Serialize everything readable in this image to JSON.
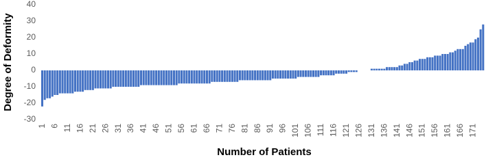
{
  "chart_data": {
    "type": "bar",
    "x_label": "Number of Patients",
    "y_label": "Degree of Deformity",
    "color": "#4472c4",
    "ylim": [
      -30,
      40
    ],
    "yticks": [
      -30,
      -20,
      -10,
      0,
      10,
      20,
      30,
      40
    ],
    "grid": false,
    "categories": [
      1,
      null,
      null,
      null,
      null,
      6,
      null,
      null,
      null,
      null,
      11,
      null,
      null,
      null,
      null,
      16,
      null,
      null,
      null,
      null,
      21,
      null,
      null,
      null,
      null,
      26,
      null,
      null,
      null,
      null,
      31,
      null,
      null,
      null,
      null,
      36,
      null,
      null,
      null,
      null,
      41,
      null,
      null,
      null,
      null,
      46,
      null,
      null,
      null,
      null,
      51,
      null,
      null,
      null,
      null,
      56,
      null,
      null,
      null,
      null,
      61,
      null,
      null,
      null,
      null,
      66,
      null,
      null,
      null,
      null,
      71,
      null,
      null,
      null,
      null,
      76,
      null,
      null,
      null,
      null,
      81,
      null,
      null,
      null,
      null,
      86,
      null,
      null,
      null,
      null,
      91,
      null,
      null,
      null,
      null,
      96,
      null,
      null,
      null,
      null,
      101,
      null,
      null,
      null,
      null,
      106,
      null,
      null,
      null,
      null,
      111,
      null,
      null,
      null,
      null,
      116,
      null,
      null,
      null,
      null,
      121,
      null,
      null,
      null,
      null,
      126,
      null,
      null,
      null,
      null,
      131,
      null,
      null,
      null,
      null,
      136,
      null,
      null,
      null,
      null,
      141,
      null,
      null,
      null,
      null,
      146,
      null,
      null,
      null,
      null,
      151,
      null,
      null,
      null,
      null,
      156,
      null,
      null,
      null,
      null,
      161,
      null,
      null,
      null,
      null,
      166,
      null,
      null,
      null,
      null,
      171,
      null,
      null,
      null,
      null
    ],
    "values": [
      -22,
      -18,
      -17,
      -17,
      -16,
      -15,
      -15,
      -14,
      -14,
      -14,
      -14,
      -14,
      -14,
      -13,
      -13,
      -13,
      -13,
      -12,
      -12,
      -12,
      -12,
      -11,
      -11,
      -11,
      -11,
      -11,
      -11,
      -11,
      -10,
      -10,
      -10,
      -10,
      -10,
      -10,
      -10,
      -10,
      -10,
      -10,
      -10,
      -9,
      -9,
      -9,
      -9,
      -9,
      -9,
      -9,
      -9,
      -9,
      -9,
      -9,
      -9,
      -9,
      -9,
      -9,
      -8,
      -8,
      -8,
      -8,
      -8,
      -8,
      -8,
      -8,
      -8,
      -8,
      -8,
      -8,
      -8,
      -7,
      -7,
      -7,
      -7,
      -7,
      -7,
      -7,
      -7,
      -7,
      -7,
      -7,
      -6,
      -6,
      -6,
      -6,
      -6,
      -6,
      -6,
      -6,
      -6,
      -6,
      -6,
      -6,
      -6,
      -5,
      -5,
      -5,
      -5,
      -5,
      -5,
      -5,
      -5,
      -5,
      -5,
      -4,
      -4,
      -4,
      -4,
      -4,
      -4,
      -4,
      -4,
      -4,
      -3,
      -3,
      -3,
      -3,
      -3,
      -3,
      -2,
      -2,
      -2,
      -2,
      -2,
      -1,
      -1,
      -1,
      -1,
      0,
      0,
      0,
      0,
      0,
      1,
      1,
      1,
      1,
      1,
      1,
      2,
      2,
      2,
      2,
      2,
      3,
      3,
      4,
      4,
      5,
      5,
      6,
      6,
      7,
      7,
      7,
      8,
      8,
      8,
      9,
      9,
      9,
      10,
      10,
      10,
      11,
      11,
      12,
      13,
      13,
      13,
      15,
      16,
      17,
      17,
      19,
      20,
      25,
      28
    ]
  }
}
